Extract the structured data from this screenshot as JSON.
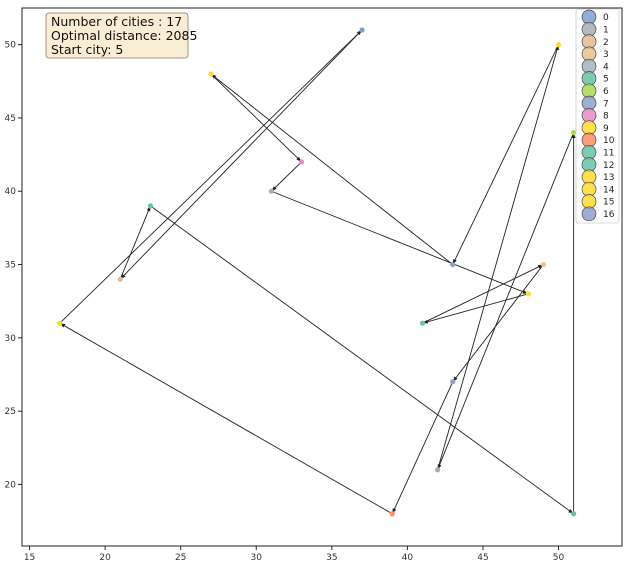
{
  "info_box": {
    "line1": "Number of cities : 17",
    "line2": "Optimal distance: 2085",
    "line3": "Start city: 5"
  },
  "chart_data": {
    "type": "scatter",
    "title": "",
    "xlabel": "",
    "ylabel": "",
    "xlim": [
      14.5,
      54.2
    ],
    "ylim": [
      15.8,
      52.5
    ],
    "x_ticks": [
      15,
      20,
      25,
      30,
      35,
      40,
      45,
      50
    ],
    "y_ticks": [
      20,
      25,
      30,
      35,
      40,
      45,
      50
    ],
    "grid": false,
    "legend_position": "top-right",
    "cities": [
      {
        "id": "0",
        "x": 37,
        "y": 51,
        "color": "#7b9fd0"
      },
      {
        "id": "1",
        "x": 42,
        "y": 21,
        "color": "#a6adb5"
      },
      {
        "id": "2",
        "x": 21,
        "y": 34,
        "color": "#e6b98f"
      },
      {
        "id": "3",
        "x": 49,
        "y": 35,
        "color": "#e8c08e"
      },
      {
        "id": "4",
        "x": 31,
        "y": 40,
        "color": "#a6b0bf"
      },
      {
        "id": "5",
        "x": 23,
        "y": 39,
        "color": "#66c2a5"
      },
      {
        "id": "6",
        "x": 51,
        "y": 44,
        "color": "#a6d854"
      },
      {
        "id": "7",
        "x": 43,
        "y": 27,
        "color": "#8da0cb"
      },
      {
        "id": "8",
        "x": 33,
        "y": 42,
        "color": "#e78ac3"
      },
      {
        "id": "9",
        "x": 48,
        "y": 33,
        "color": "#ffd92f"
      },
      {
        "id": "10",
        "x": 39,
        "y": 18,
        "color": "#fc8d62"
      },
      {
        "id": "11",
        "x": 41,
        "y": 31,
        "color": "#66c2a5"
      },
      {
        "id": "12",
        "x": 51,
        "y": 18,
        "color": "#66c2a5"
      },
      {
        "id": "13",
        "x": 17,
        "y": 31,
        "color": "#ffd92f"
      },
      {
        "id": "14",
        "x": 27,
        "y": 48,
        "color": "#ffd92f"
      },
      {
        "id": "15",
        "x": 50,
        "y": 50,
        "color": "#ffd92f"
      },
      {
        "id": "16",
        "x": 43,
        "y": 35,
        "color": "#8da0cb"
      }
    ],
    "tour": [
      "5",
      "12",
      "6",
      "1",
      "15",
      "16",
      "14",
      "8",
      "4",
      "9",
      "11",
      "3",
      "7",
      "10",
      "13",
      "0",
      "2",
      "5"
    ]
  }
}
